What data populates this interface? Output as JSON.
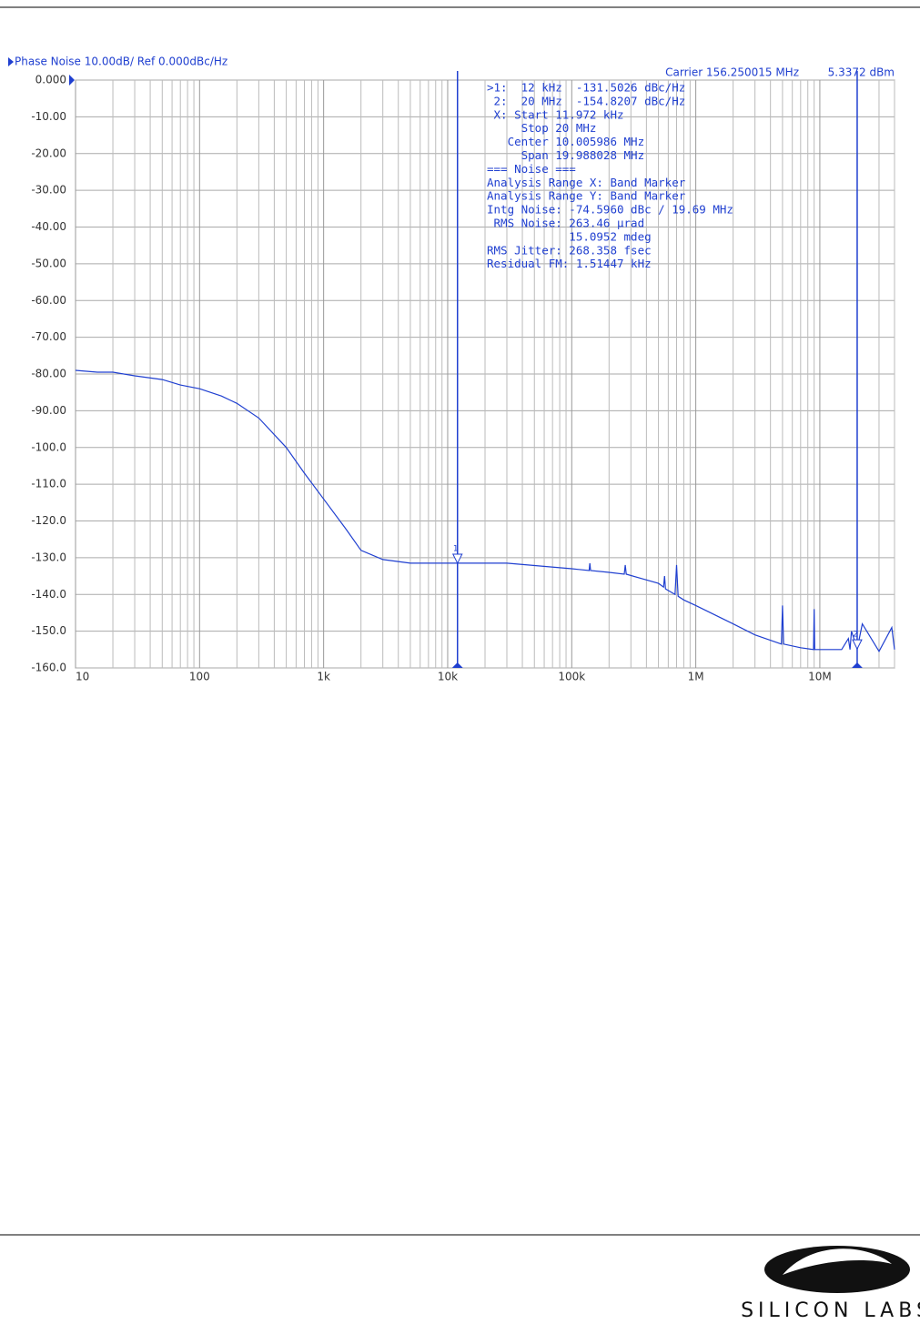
{
  "chart_data": {
    "type": "line",
    "title": "Phase Noise 10.00dB/ Ref 0.000dBc/Hz",
    "carrier": "Carrier 156.250015 MHz",
    "carrier_power": "5.3372 dBm",
    "x": [
      10,
      15,
      20,
      30,
      50,
      70,
      100,
      150,
      200,
      300,
      500,
      700,
      1000,
      1500,
      2000,
      3000,
      5000,
      10000,
      12000,
      30000,
      100000,
      138000,
      140000,
      142000,
      200000,
      265000,
      270000,
      275000,
      500000,
      550000,
      560000,
      570000,
      680000,
      700000,
      720000,
      800000,
      1000000,
      2000000,
      3000000,
      4900000,
      5000000,
      5100000,
      7000000,
      8900000,
      9000000,
      9100000,
      15000000,
      17000000,
      17500000,
      18000000,
      20000000,
      22000000,
      30000000,
      38000000,
      40000000
    ],
    "series": [
      {
        "name": "Phase Noise",
        "color": "#1f3fd0",
        "values": [
          -79,
          -79.5,
          -79.5,
          -80.5,
          -81.5,
          -83,
          -84,
          -86,
          -88,
          -92,
          -100,
          -107,
          -114,
          -122,
          -128,
          -130.5,
          -131.5,
          -131.5,
          -131.5,
          -131.5,
          -133,
          -133.5,
          -131.5,
          -133.5,
          -134,
          -134.5,
          -132,
          -134.5,
          -137,
          -138,
          -135,
          -138.5,
          -140,
          -132,
          -140.5,
          -141.5,
          -143,
          -148,
          -151,
          -153.5,
          -143,
          -153.5,
          -154.5,
          -155,
          -144,
          -155,
          -155,
          -152,
          -155,
          -150,
          -154.8,
          -148,
          -155.5,
          -149,
          -155
        ]
      }
    ],
    "markers": [
      {
        "label": "1",
        "x": 12000,
        "value": -131.5026
      },
      {
        "label": "2",
        "x": 20000000,
        "value": -154.8207
      }
    ],
    "annotations": [
      ">1:  12 kHz  -131.5026 dBc/Hz",
      " 2:  20 MHz  -154.8207 dBc/Hz",
      " X: Start 11.972 kHz",
      "     Stop 20 MHz",
      "   Center 10.005986 MHz",
      "     Span 19.988028 MHz",
      "=== Noise ===",
      "Analysis Range X: Band Marker",
      "Analysis Range Y: Band Marker",
      "Intg Noise: -74.5960 dBc / 19.69 MHz",
      " RMS Noise: 263.46 µrad",
      "            15.0952 mdeg",
      "RMS Jitter: 268.358 fsec",
      "Residual FM: 1.51447 kHz"
    ],
    "xlim": [
      10,
      40000000
    ],
    "xlog": true,
    "xticks": [
      10,
      100,
      {
        "value": 1000,
        "label": "1k"
      },
      {
        "value": 10000,
        "label": "10k"
      },
      {
        "value": 100000,
        "label": "100k"
      },
      {
        "value": 1000000,
        "label": "1M"
      },
      {
        "value": 10000000,
        "label": "10M"
      }
    ],
    "ylim": [
      -160,
      0
    ],
    "yticks": [
      {
        "value": 0,
        "label": "0.000"
      },
      {
        "value": -10,
        "label": "-10.00"
      },
      {
        "value": -20,
        "label": "-20.00"
      },
      {
        "value": -30,
        "label": "-30.00"
      },
      {
        "value": -40,
        "label": "-40.00"
      },
      {
        "value": -50,
        "label": "-50.00"
      },
      {
        "value": -60,
        "label": "-60.00"
      },
      {
        "value": -70,
        "label": "-70.00"
      },
      {
        "value": -80,
        "label": "-80.00"
      },
      {
        "value": -90,
        "label": "-90.00"
      },
      {
        "value": -100,
        "label": "-100.0"
      },
      {
        "value": -110,
        "label": "-110.0"
      },
      {
        "value": -120,
        "label": "-120.0"
      },
      {
        "value": -130,
        "label": "-130.0"
      },
      {
        "value": -140,
        "label": "-140.0"
      },
      {
        "value": -150,
        "label": "-150.0"
      },
      {
        "value": -160,
        "label": "-160.0"
      }
    ],
    "grid": true
  },
  "footer": {
    "logo_text": "SILICON LABS"
  }
}
